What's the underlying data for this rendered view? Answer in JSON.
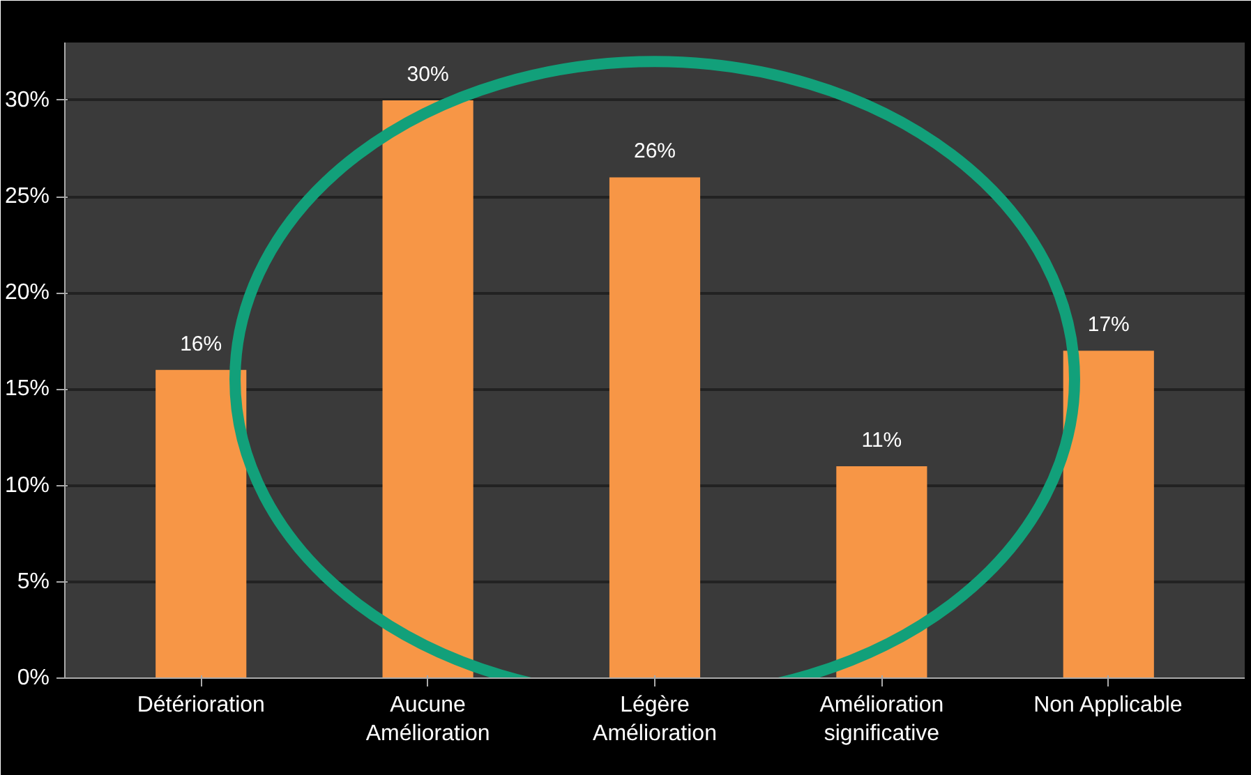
{
  "chart_data": {
    "type": "bar",
    "categories": [
      "Détérioration",
      "Aucune\nAmélioration",
      "Légère\nAmélioration",
      "Amélioration\nsignificative",
      "Non Applicable"
    ],
    "values": [
      16,
      30,
      26,
      11,
      17
    ],
    "color": "#f79646",
    "value_labels": [
      "16%",
      "30%",
      "26%",
      "11%",
      "17%"
    ],
    "ylim": [
      0,
      33
    ],
    "yticks": [
      {
        "value": 0,
        "label": "0%"
      },
      {
        "value": 5,
        "label": "5%"
      },
      {
        "value": 10,
        "label": "10%"
      },
      {
        "value": 15,
        "label": "15%"
      },
      {
        "value": 20,
        "label": "20%"
      },
      {
        "value": 25,
        "label": "25%"
      },
      {
        "value": 30,
        "label": "30%"
      }
    ],
    "grid": "y"
  }
}
